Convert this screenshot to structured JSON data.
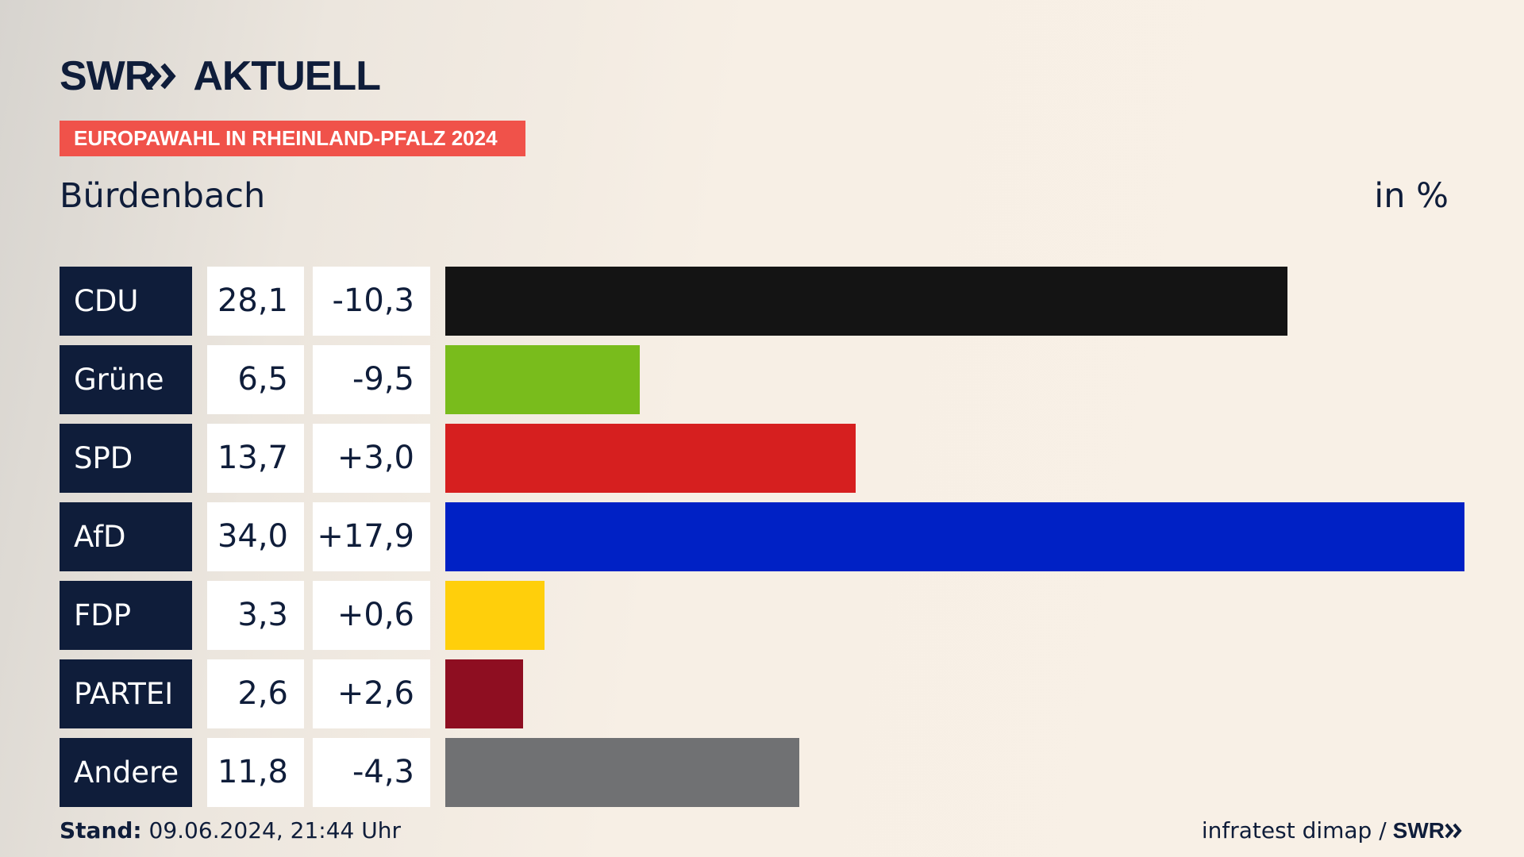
{
  "brand": {
    "logo_text": "SWR",
    "logo_suffix": "AKTUELL"
  },
  "header": {
    "badge": "EUROPAWAHL IN RHEINLAND-PFALZ 2024",
    "place": "Bürdenbach",
    "unit": "in %"
  },
  "colors": {
    "navy": "#0f1d3a",
    "badge": "#f0524a"
  },
  "chart_data": {
    "type": "bar",
    "categories": [
      "CDU",
      "Grüne",
      "SPD",
      "AfD",
      "FDP",
      "PARTEI",
      "Andere"
    ],
    "values": [
      28.1,
      6.5,
      13.7,
      34.0,
      3.3,
      2.6,
      11.8
    ],
    "value_labels": [
      "28,1",
      "6,5",
      "13,7",
      "34,0",
      "3,3",
      "2,6",
      "11,8"
    ],
    "diff_labels": [
      "-10,3",
      "-9,5",
      "+3,0",
      "+17,9",
      "+0,6",
      "+2,6",
      "-4,3"
    ],
    "diffs": [
      -10.3,
      -9.5,
      3.0,
      17.9,
      0.6,
      2.6,
      -4.3
    ],
    "colors": [
      "#141414",
      "#79bc1c",
      "#d61f1f",
      "#0021c5",
      "#ffcf0b",
      "#8e0e21",
      "#707173"
    ],
    "orientation": "horizontal",
    "xlim": [
      0,
      34.0
    ],
    "grid": false
  },
  "footer": {
    "stand_label": "Stand:",
    "stand_value": "09.06.2024, 21:44 Uhr",
    "source": "infratest dimap /",
    "source_logo": "SWR"
  }
}
